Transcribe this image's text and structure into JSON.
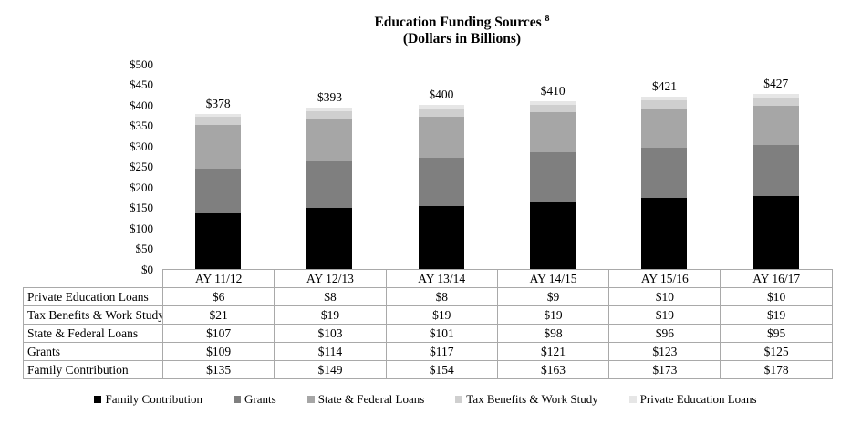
{
  "chart_data": {
    "type": "bar",
    "stacked": true,
    "title": "Education Funding Sources",
    "title_footnote_ref": "8",
    "subtitle": "(Dollars in Billions)",
    "categories": [
      "AY 11/12",
      "AY 12/13",
      "AY 13/14",
      "AY 14/15",
      "AY 15/16",
      "AY 16/17"
    ],
    "series": [
      {
        "name": "Family Contribution",
        "color": "#000000",
        "values": [
          135,
          149,
          154,
          163,
          173,
          178
        ]
      },
      {
        "name": "Grants",
        "color": "#7f7f7f",
        "values": [
          109,
          114,
          117,
          121,
          123,
          125
        ]
      },
      {
        "name": "State & Federal Loans",
        "color": "#a6a6a6",
        "values": [
          107,
          103,
          101,
          98,
          96,
          95
        ]
      },
      {
        "name": "Tax Benefits & Work Study",
        "color": "#cfcfcf",
        "values": [
          21,
          19,
          19,
          19,
          19,
          19
        ]
      },
      {
        "name": "Private Education Loans",
        "color": "#e6e6e6",
        "values": [
          6,
          8,
          8,
          9,
          10,
          10
        ]
      }
    ],
    "totals": [
      378,
      393,
      400,
      410,
      421,
      427
    ],
    "total_labels": [
      "$378",
      "$393",
      "$400",
      "$410",
      "$421",
      "$427"
    ],
    "y_axis": {
      "min": 0,
      "max": 500,
      "tick_step": 50,
      "tick_values": [
        0,
        50,
        100,
        150,
        200,
        250,
        300,
        350,
        400,
        450,
        500
      ],
      "tick_labels": [
        "$0",
        "$50",
        "$100",
        "$150",
        "$200",
        "$250",
        "$300",
        "$350",
        "$400",
        "$450",
        "$500"
      ]
    },
    "gridlines": false,
    "legend_position": "bottom",
    "legend_entries": [
      "Family Contribution",
      "Grants",
      "State & Federal Loans",
      "Tax Benefits & Work Study",
      "Private Education Loans"
    ]
  },
  "table": {
    "header": [
      "AY 11/12",
      "AY 12/13",
      "AY 13/14",
      "AY 14/15",
      "AY 15/16",
      "AY 16/17"
    ],
    "rows": [
      {
        "label": "Private Education Loans",
        "values": [
          "$6",
          "$8",
          "$8",
          "$9",
          "$10",
          "$10"
        ]
      },
      {
        "label": "Tax Benefits & Work Study",
        "values": [
          "$21",
          "$19",
          "$19",
          "$19",
          "$19",
          "$19"
        ]
      },
      {
        "label": "State & Federal Loans",
        "values": [
          "$107",
          "$103",
          "$101",
          "$98",
          "$96",
          "$95"
        ]
      },
      {
        "label": "Grants",
        "values": [
          "$109",
          "$114",
          "$117",
          "$121",
          "$123",
          "$125"
        ]
      },
      {
        "label": "Family Contribution",
        "values": [
          "$135",
          "$149",
          "$154",
          "$163",
          "$173",
          "$178"
        ]
      }
    ]
  }
}
